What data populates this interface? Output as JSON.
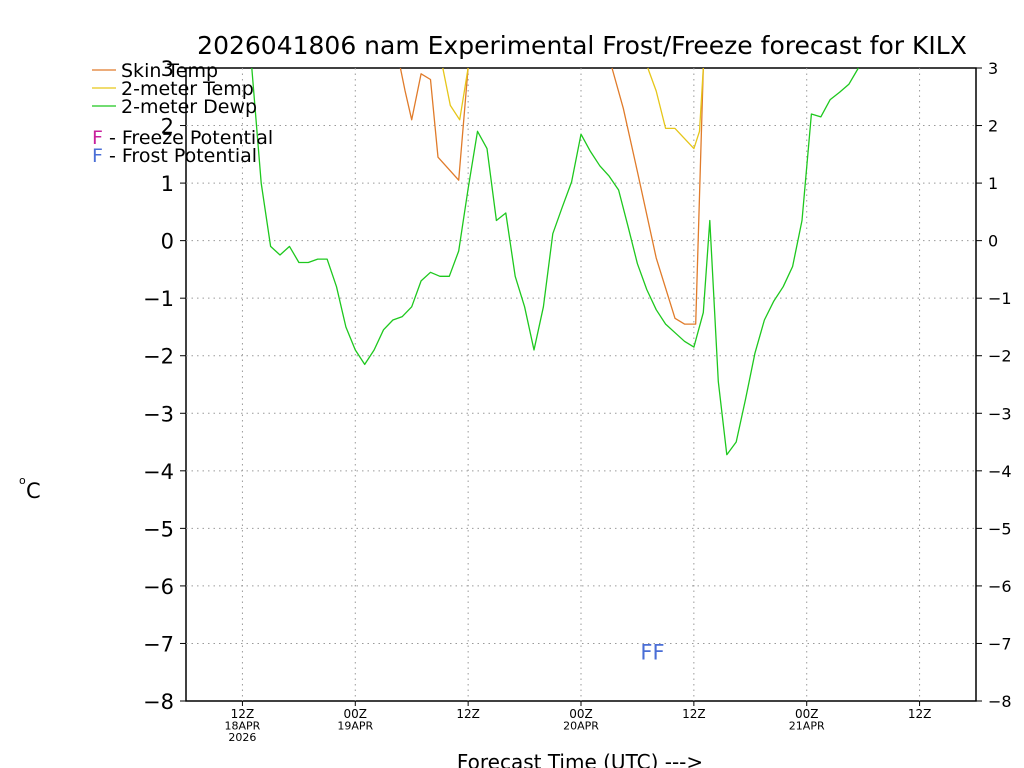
{
  "title": "2026041806 nam Experimental Frost/Freeze forecast for KILX",
  "chart_data": {
    "type": "line",
    "title": "2026041806 nam Experimental Frost/Freeze forecast for KILX",
    "xlabel": "Forecast Time (UTC) --->",
    "ylabel_unit": "o",
    "ylabel_letter": "C",
    "ylim": [
      -8,
      3
    ],
    "xlim": [
      0,
      84
    ],
    "yticks": [
      {
        "value": 3,
        "label": "3"
      },
      {
        "value": 2,
        "label": "2"
      },
      {
        "value": 1,
        "label": "1"
      },
      {
        "value": 0,
        "label": "0"
      },
      {
        "value": -1,
        "label": "−1"
      },
      {
        "value": -2,
        "label": "−2"
      },
      {
        "value": -3,
        "label": "−3"
      },
      {
        "value": -4,
        "label": "−4"
      },
      {
        "value": -5,
        "label": "−5"
      },
      {
        "value": -6,
        "label": "−6"
      },
      {
        "value": -7,
        "label": "−7"
      },
      {
        "value": -8,
        "label": "−8"
      }
    ],
    "xticks": [
      {
        "value": 6,
        "lines": [
          "12Z",
          "18APR",
          "2026"
        ]
      },
      {
        "value": 18,
        "lines": [
          "00Z",
          "19APR"
        ]
      },
      {
        "value": 30,
        "lines": [
          "12Z"
        ]
      },
      {
        "value": 42,
        "lines": [
          "00Z",
          "20APR"
        ]
      },
      {
        "value": 54,
        "lines": [
          "12Z"
        ]
      },
      {
        "value": 66,
        "lines": [
          "00Z",
          "21APR"
        ]
      },
      {
        "value": 78,
        "lines": [
          "12Z"
        ]
      }
    ],
    "grid": true,
    "legend": [
      {
        "label": "Skin Temp",
        "color": "#e07b2a"
      },
      {
        "label": "2-meter Temp",
        "color": "#e6c619"
      },
      {
        "label": "2-meter Dewp",
        "color": "#1ec81e"
      }
    ],
    "potential_legend": [
      {
        "marker": "F",
        "label": " - Freeze Potential",
        "color": "#c8209c"
      },
      {
        "marker": "F",
        "label": " - Frost Potential",
        "color": "#4a6ed6"
      }
    ],
    "series": [
      {
        "name": "Skin Temp",
        "color": "#e07b2a",
        "segments": [
          [
            [
              22.8,
              3.0
            ],
            [
              23.3,
              2.6
            ],
            [
              24.0,
              2.1
            ],
            [
              25.0,
              2.9
            ],
            [
              26.0,
              2.8
            ],
            [
              26.8,
              1.45
            ],
            [
              29.0,
              1.05
            ],
            [
              30.0,
              3.0
            ]
          ],
          [
            [
              45.3,
              3.0
            ],
            [
              46.5,
              2.3
            ],
            [
              48.0,
              1.2
            ],
            [
              50.0,
              -0.3
            ],
            [
              52.0,
              -1.35
            ],
            [
              53.0,
              -1.45
            ],
            [
              53.5,
              -1.45
            ],
            [
              54.2,
              -1.45
            ],
            [
              55.0,
              3.0
            ]
          ]
        ]
      },
      {
        "name": "2-meter Temp",
        "color": "#e6c619",
        "segments": [
          [
            [
              27.3,
              3.0
            ],
            [
              28.1,
              2.35
            ],
            [
              29.1,
              2.1
            ],
            [
              30.0,
              3.0
            ]
          ],
          [
            [
              49.1,
              3.0
            ],
            [
              50.0,
              2.6
            ],
            [
              51.0,
              1.95
            ],
            [
              52.0,
              1.95
            ],
            [
              54.0,
              1.6
            ],
            [
              54.6,
              1.9
            ],
            [
              55.0,
              3.0
            ]
          ]
        ]
      },
      {
        "name": "2-meter Dewp",
        "color": "#1ec81e",
        "segments": [
          [
            [
              7.0,
              3.0
            ],
            [
              8.0,
              1.0
            ],
            [
              9.0,
              -0.1
            ],
            [
              10.0,
              -0.25
            ],
            [
              11.0,
              -0.1
            ],
            [
              12.0,
              -0.38
            ],
            [
              13.0,
              -0.38
            ],
            [
              14.0,
              -0.32
            ],
            [
              15.0,
              -0.32
            ],
            [
              16.0,
              -0.8
            ],
            [
              17.0,
              -1.5
            ],
            [
              18.0,
              -1.9
            ],
            [
              19.0,
              -2.15
            ],
            [
              20.0,
              -1.9
            ],
            [
              21.0,
              -1.55
            ],
            [
              22.0,
              -1.38
            ],
            [
              23.0,
              -1.32
            ],
            [
              24.0,
              -1.15
            ],
            [
              25.0,
              -0.7
            ],
            [
              26.0,
              -0.55
            ],
            [
              27.0,
              -0.62
            ],
            [
              28.0,
              -0.62
            ],
            [
              29.0,
              -0.18
            ],
            [
              30.0,
              0.9
            ],
            [
              31.0,
              1.9
            ],
            [
              32.0,
              1.6
            ],
            [
              33.0,
              0.35
            ],
            [
              34.0,
              0.48
            ],
            [
              35.0,
              -0.62
            ],
            [
              36.0,
              -1.15
            ],
            [
              37.0,
              -1.9
            ],
            [
              38.0,
              -1.15
            ],
            [
              39.0,
              0.12
            ],
            [
              40.0,
              0.58
            ],
            [
              41.0,
              1.02
            ],
            [
              42.0,
              1.85
            ],
            [
              43.0,
              1.55
            ],
            [
              44.0,
              1.3
            ],
            [
              45.0,
              1.12
            ],
            [
              46.0,
              0.88
            ],
            [
              47.0,
              0.25
            ],
            [
              48.0,
              -0.4
            ],
            [
              49.0,
              -0.85
            ],
            [
              50.0,
              -1.2
            ],
            [
              51.0,
              -1.45
            ],
            [
              52.0,
              -1.6
            ],
            [
              53.0,
              -1.75
            ],
            [
              54.0,
              -1.85
            ],
            [
              55.0,
              -1.25
            ],
            [
              55.7,
              0.35
            ],
            [
              56.6,
              -2.45
            ],
            [
              57.5,
              -3.72
            ],
            [
              58.5,
              -3.5
            ],
            [
              59.5,
              -2.75
            ],
            [
              60.5,
              -1.95
            ],
            [
              61.5,
              -1.38
            ],
            [
              62.5,
              -1.05
            ],
            [
              63.5,
              -0.8
            ],
            [
              64.5,
              -0.45
            ],
            [
              65.5,
              0.35
            ],
            [
              66.5,
              2.2
            ],
            [
              67.5,
              2.15
            ],
            [
              68.5,
              2.45
            ],
            [
              69.5,
              2.58
            ],
            [
              70.5,
              2.72
            ],
            [
              71.5,
              3.0
            ]
          ]
        ]
      }
    ],
    "markers": [
      {
        "text": "FF",
        "x": 49.6,
        "y": -7.14,
        "color": "#4a6ed6"
      }
    ]
  }
}
